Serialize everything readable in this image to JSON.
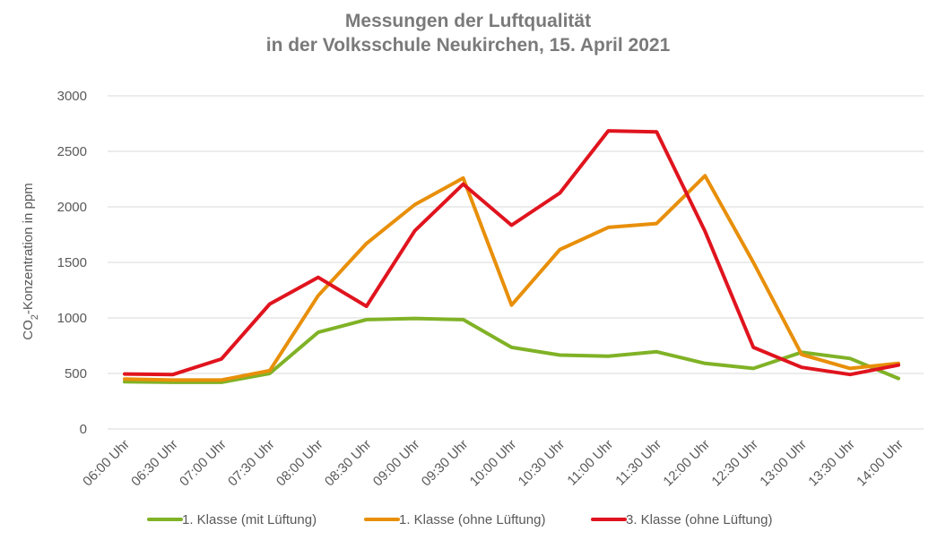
{
  "chart_data": {
    "type": "line",
    "title": [
      "Messungen der Luftqualität",
      "in der Volksschule Neukirchen, 15. April 2021"
    ],
    "ylabel": "CO₂-Konzentration in ppm",
    "xlabel": "",
    "ylim": [
      0,
      3000
    ],
    "yticks": [
      0,
      500,
      1000,
      1500,
      2000,
      2500,
      3000
    ],
    "grid": true,
    "legend_position": "bottom",
    "categories": [
      "06:00 Uhr",
      "06:30 Uhr",
      "07:00 Uhr",
      "07:30 Uhr",
      "08:00 Uhr",
      "08:30 Uhr",
      "09:00 Uhr",
      "09:30 Uhr",
      "10:00 Uhr",
      "10:30 Uhr",
      "11:00 Uhr",
      "11:30 Uhr",
      "12:00 Uhr",
      "12:30 Uhr",
      "13:00 Uhr",
      "13:30 Uhr",
      "14:00 Uhr"
    ],
    "series": [
      {
        "name": "1. Klasse (mit Lüftung)",
        "color": "#80b226",
        "values": [
          425,
          420,
          420,
          500,
          870,
          985,
          995,
          985,
          735,
          665,
          655,
          695,
          590,
          545,
          690,
          635,
          455
        ]
      },
      {
        "name": "1. Klasse (ohne Lüftung)",
        "color": "#e88f0a",
        "values": [
          450,
          440,
          440,
          525,
          1200,
          1670,
          2020,
          2260,
          1115,
          1615,
          1815,
          1850,
          2280,
          1500,
          670,
          545,
          590
        ]
      },
      {
        "name": "3. Klasse (ohne Lüftung)",
        "color": "#e0141e",
        "values": [
          495,
          490,
          630,
          1125,
          1365,
          1105,
          1785,
          2205,
          1835,
          2125,
          2685,
          2675,
          1780,
          735,
          555,
          490,
          575
        ]
      }
    ]
  }
}
